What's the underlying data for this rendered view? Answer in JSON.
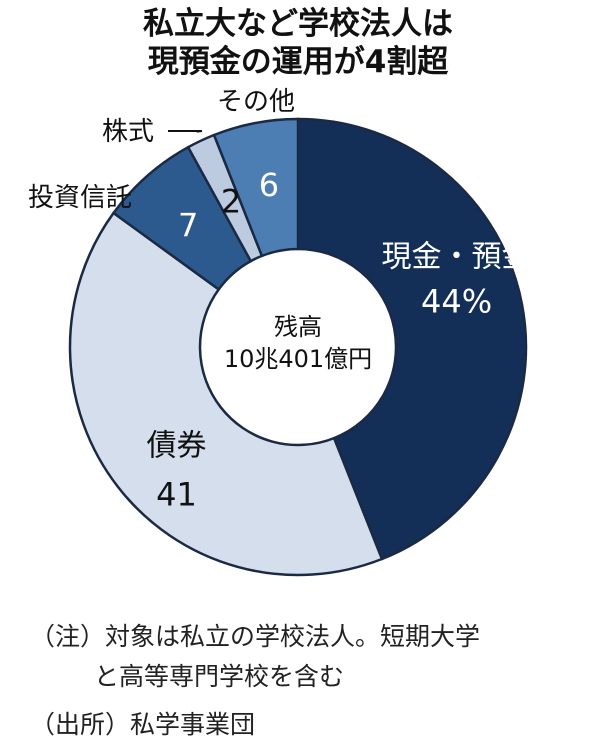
{
  "title": [
    "私立大など学校法人は",
    "現預金の運用が4割超"
  ],
  "center_label": [
    "残高",
    "10兆401億円"
  ],
  "chart_data": {
    "type": "pie",
    "title": "私立大など学校法人は現預金の運用が4割超",
    "total": "10兆401億円",
    "unit": "%",
    "slices": [
      {
        "name": "現金・預金",
        "value": 44,
        "value_label": "44%",
        "color": "#142f57"
      },
      {
        "name": "債券",
        "value": 41,
        "value_label": "41",
        "color": "#d4deec"
      },
      {
        "name": "投資信託",
        "value": 7,
        "value_label": "7",
        "color": "#2c5a8e"
      },
      {
        "name": "株式",
        "value": 2,
        "value_label": "2",
        "color": "#bccbe0"
      },
      {
        "name": "その他",
        "value": 6,
        "value_label": "6",
        "color": "#4c7eb3"
      }
    ]
  },
  "notes": {
    "note_line1": "（注）対象は私立の学校法人。短期大学",
    "note_line2": "と高等専門学校を含む",
    "source": "（出所）私学事業団"
  }
}
